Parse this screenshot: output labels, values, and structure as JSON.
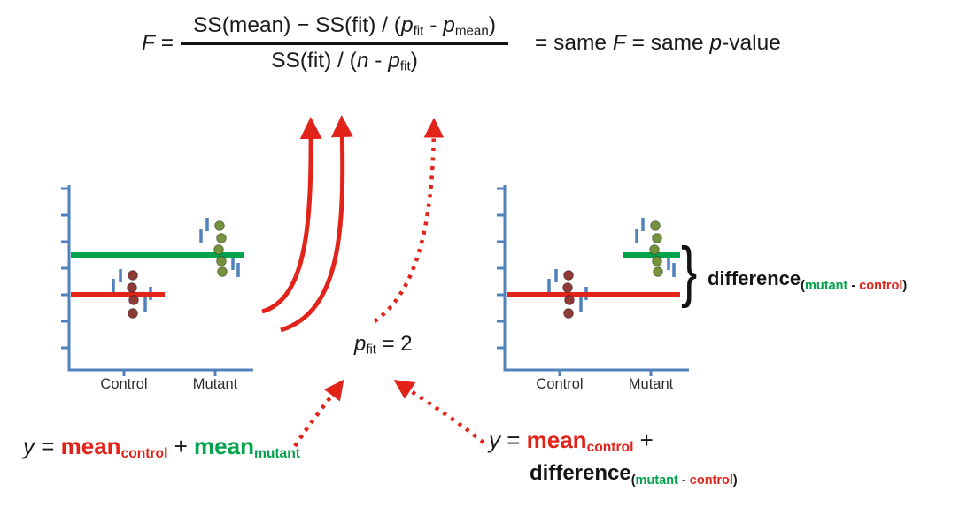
{
  "colors": {
    "red": "#e2231a",
    "green": "#00a24c",
    "blue": "#4f81bd",
    "dark_red": "#8e3a39",
    "olive": "#76923c",
    "ink": "#1a1a1a"
  },
  "formula": {
    "lhs_var": "F",
    "lhs_eq": " = ",
    "numerator": {
      "s1": "SS(mean) − SS(fit) / (",
      "p1": "p",
      "sub1": "fit",
      "s2": " - ",
      "p2": "p",
      "sub2": "mean",
      "s3": ")"
    },
    "denominator": {
      "s1": "SS(fit) / (",
      "n": "n",
      "s2": " - ",
      "p": "p",
      "sub": "fit",
      "s3": ")"
    },
    "rhs": {
      "s1": "= same ",
      "f": "F",
      "s2": " = same ",
      "p": "p",
      "s3": "-value"
    }
  },
  "p_fit": {
    "p": "p",
    "sub": "fit",
    "eq": " = 2"
  },
  "plots": {
    "left": {
      "x_labels": [
        "Control",
        "Mutant"
      ],
      "y_ticks": [
        10,
        40,
        70,
        100,
        130,
        160,
        190
      ],
      "x_ticks": [
        76,
        179
      ],
      "mean_lines": [
        {
          "color": "green",
          "y": 85,
          "x1": 16,
          "x2": 212
        },
        {
          "color": "red",
          "y": 130,
          "x1": 16,
          "x2": 122
        }
      ],
      "dots": [
        [
          86,
          108,
          "dark_red"
        ],
        [
          85,
          122,
          "dark_red"
        ],
        [
          87,
          136,
          "dark_red"
        ],
        [
          86,
          151,
          "dark_red"
        ],
        [
          184,
          52,
          "olive"
        ],
        [
          186,
          66,
          "olive"
        ],
        [
          183,
          79,
          "olive"
        ],
        [
          186,
          92,
          "olive"
        ],
        [
          187,
          104,
          "olive"
        ]
      ],
      "residuals": [
        [
          64,
          112,
          128
        ],
        [
          72,
          101,
          116
        ],
        [
          100,
          132,
          150
        ],
        [
          106,
          121,
          136
        ],
        [
          163,
          56,
          72
        ],
        [
          170,
          43,
          58
        ],
        [
          199,
          86,
          102
        ],
        [
          205,
          94,
          110
        ]
      ]
    },
    "right": {
      "x_labels": [
        "Control",
        "Mutant"
      ],
      "y_ticks": [
        10,
        40,
        70,
        100,
        130,
        160,
        190
      ],
      "x_ticks": [
        76,
        179
      ],
      "mean_lines": [
        {
          "color": "red",
          "y": 130,
          "x1": 16,
          "x2": 212
        },
        {
          "color": "green",
          "y": 85,
          "x1": 148,
          "x2": 212
        }
      ],
      "dots": [
        [
          86,
          108,
          "dark_red"
        ],
        [
          85,
          122,
          "dark_red"
        ],
        [
          87,
          136,
          "dark_red"
        ],
        [
          86,
          151,
          "dark_red"
        ],
        [
          184,
          52,
          "olive"
        ],
        [
          186,
          66,
          "olive"
        ],
        [
          183,
          79,
          "olive"
        ],
        [
          186,
          92,
          "olive"
        ],
        [
          187,
          104,
          "olive"
        ]
      ],
      "residuals": [
        [
          64,
          112,
          128
        ],
        [
          72,
          101,
          116
        ],
        [
          100,
          132,
          150
        ],
        [
          106,
          121,
          136
        ],
        [
          163,
          56,
          72
        ],
        [
          170,
          43,
          58
        ],
        [
          199,
          86,
          102
        ],
        [
          205,
          94,
          110
        ]
      ]
    }
  },
  "brace": "}",
  "brace_label": {
    "word": "difference",
    "sub_open": "(",
    "sub_mutant": "mutant",
    "sub_dash": " - ",
    "sub_control": "control",
    "sub_close": ")"
  },
  "eq_left": {
    "y": "y",
    "eq": " = ",
    "mean1": "mean",
    "sub1": "control",
    "plus": " + ",
    "mean2": "mean",
    "sub2": "mutant"
  },
  "eq_right": {
    "y": "y",
    "eq": " = ",
    "mean": "mean",
    "sub": "control",
    "plus": " +",
    "word": "difference",
    "sub_open": "(",
    "sub_mutant": "mutant",
    "sub_dash": " - ",
    "sub_control": "control",
    "sub_close": ")"
  }
}
